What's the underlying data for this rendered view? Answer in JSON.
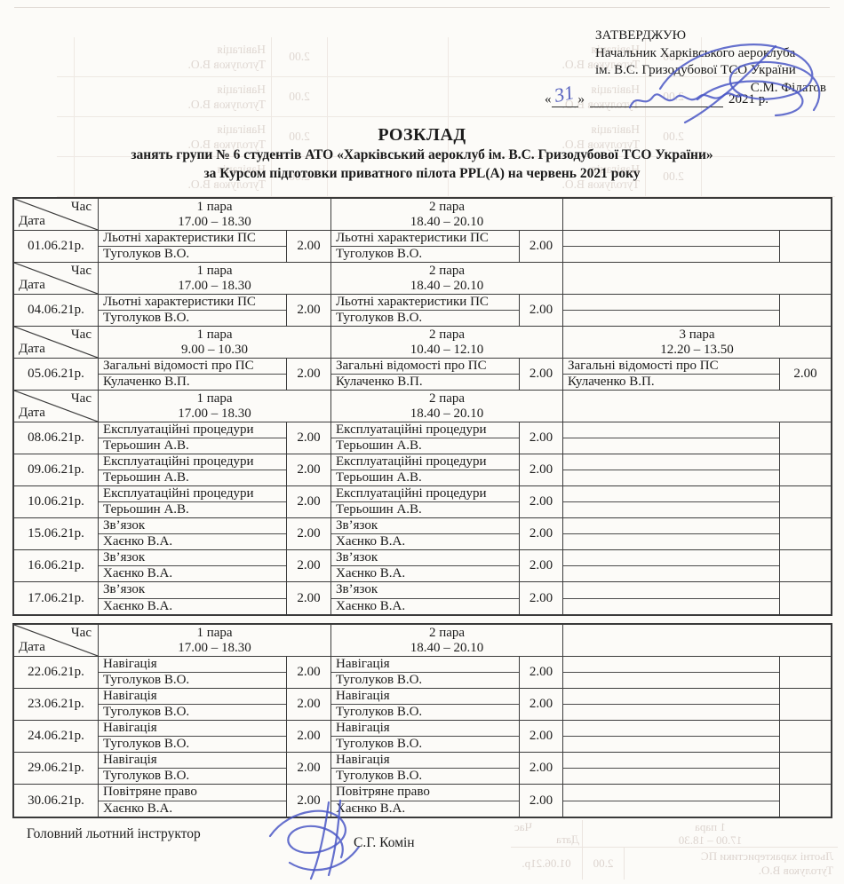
{
  "approval": {
    "stamp": "ЗАТВЕРДЖУЮ",
    "org_line1": "Начальник Харківського аероклуба",
    "org_line2": "ім. В.С. Гризодубової ТСО України",
    "signer": "С.М. Філатов",
    "quote_open": "«",
    "quote_close": "»",
    "year_suffix": "2021 р.",
    "handwritten_day": "31"
  },
  "title": {
    "heading": "РОЗКЛАД",
    "line2": "занять групи № 6 студентів АТО «Харківський аероклуб ім. В.С. Гризодубової ТСО України»",
    "line3": "за Курсом підготовки приватного пілота PPL(A) на червень 2021 року"
  },
  "corner": {
    "top": "Час",
    "bottom": "Дата"
  },
  "tables": [
    {
      "blocks": [
        {
          "type": "header",
          "cols": [
            {
              "para": "1 пара",
              "time": "17.00 – 18.30"
            },
            {
              "para": "2 пара",
              "time": "18.40 – 20.10"
            },
            {
              "para": "",
              "time": ""
            }
          ]
        },
        {
          "type": "row",
          "date": "01.06.21р.",
          "sessions": [
            {
              "subject": "Льотні характеристики ПС",
              "instructor": "Туголуков В.О.",
              "hours": "2.00"
            },
            {
              "subject": "Льотні характеристики ПС",
              "instructor": "Туголуков В.О.",
              "hours": "2.00"
            },
            {
              "subject": "",
              "instructor": "",
              "hours": ""
            }
          ]
        },
        {
          "type": "header",
          "cols": [
            {
              "para": "1 пара",
              "time": "17.00 – 18.30"
            },
            {
              "para": "2 пара",
              "time": "18.40 – 20.10"
            },
            {
              "para": "",
              "time": ""
            }
          ]
        },
        {
          "type": "row",
          "date": "04.06.21р.",
          "sessions": [
            {
              "subject": "Льотні характеристики ПС",
              "instructor": "Туголуков В.О.",
              "hours": "2.00"
            },
            {
              "subject": "Льотні характеристики ПС",
              "instructor": "Туголуков В.О.",
              "hours": "2.00"
            },
            {
              "subject": "",
              "instructor": "",
              "hours": ""
            }
          ]
        },
        {
          "type": "header",
          "cols": [
            {
              "para": "1 пара",
              "time": "9.00 – 10.30"
            },
            {
              "para": "2 пара",
              "time": "10.40 – 12.10"
            },
            {
              "para": "3 пара",
              "time": "12.20 – 13.50"
            }
          ]
        },
        {
          "type": "row",
          "date": "05.06.21р.",
          "sessions": [
            {
              "subject": "Загальні відомості про ПС",
              "instructor": "Кулаченко В.П.",
              "hours": "2.00"
            },
            {
              "subject": "Загальні відомості про ПС",
              "instructor": "Кулаченко В.П.",
              "hours": "2.00"
            },
            {
              "subject": "Загальні відомості про ПС",
              "instructor": "Кулаченко В.П.",
              "hours": "2.00"
            }
          ]
        },
        {
          "type": "header",
          "cols": [
            {
              "para": "1 пара",
              "time": "17.00 – 18.30"
            },
            {
              "para": "2 пара",
              "time": "18.40 – 20.10"
            },
            {
              "para": "",
              "time": ""
            }
          ]
        },
        {
          "type": "row",
          "date": "08.06.21р.",
          "sessions": [
            {
              "subject": "Експлуатаційні процедури",
              "instructor": "Терьошин А.В.",
              "hours": "2.00"
            },
            {
              "subject": "Експлуатаційні процедури",
              "instructor": "Терьошин А.В.",
              "hours": "2.00"
            },
            {
              "subject": "",
              "instructor": "",
              "hours": ""
            }
          ]
        },
        {
          "type": "row",
          "date": "09.06.21р.",
          "sessions": [
            {
              "subject": "Експлуатаційні процедури",
              "instructor": "Терьошин А.В.",
              "hours": "2.00"
            },
            {
              "subject": "Експлуатаційні процедури",
              "instructor": "Терьошин А.В.",
              "hours": "2.00"
            },
            {
              "subject": "",
              "instructor": "",
              "hours": ""
            }
          ]
        },
        {
          "type": "row",
          "date": "10.06.21р.",
          "sessions": [
            {
              "subject": "Експлуатаційні процедури",
              "instructor": "Терьошин А.В.",
              "hours": "2.00"
            },
            {
              "subject": "Експлуатаційні процедури",
              "instructor": "Терьошин А.В.",
              "hours": "2.00"
            },
            {
              "subject": "",
              "instructor": "",
              "hours": ""
            }
          ]
        },
        {
          "type": "row",
          "date": "15.06.21р.",
          "sessions": [
            {
              "subject": "Зв’язок",
              "instructor": "Хаєнко В.А.",
              "hours": "2.00"
            },
            {
              "subject": "Зв’язок",
              "instructor": "Хаєнко В.А.",
              "hours": "2.00"
            },
            {
              "subject": "",
              "instructor": "",
              "hours": ""
            }
          ]
        },
        {
          "type": "row",
          "date": "16.06.21р.",
          "sessions": [
            {
              "subject": "Зв’язок",
              "instructor": "Хаєнко В.А.",
              "hours": "2.00"
            },
            {
              "subject": "Зв’язок",
              "instructor": "Хаєнко В.А.",
              "hours": "2.00"
            },
            {
              "subject": "",
              "instructor": "",
              "hours": ""
            }
          ]
        },
        {
          "type": "row",
          "date": "17.06.21р.",
          "sessions": [
            {
              "subject": "Зв’язок",
              "instructor": "Хаєнко В.А.",
              "hours": "2.00"
            },
            {
              "subject": "Зв’язок",
              "instructor": "Хаєнко В.А.",
              "hours": "2.00"
            },
            {
              "subject": "",
              "instructor": "",
              "hours": ""
            }
          ]
        }
      ]
    },
    {
      "blocks": [
        {
          "type": "header",
          "cols": [
            {
              "para": "1 пара",
              "time": "17.00 – 18.30"
            },
            {
              "para": "2 пара",
              "time": "18.40 – 20.10"
            },
            {
              "para": "",
              "time": ""
            }
          ]
        },
        {
          "type": "row",
          "date": "22.06.21р.",
          "sessions": [
            {
              "subject": "Навігація",
              "instructor": "Туголуков В.О.",
              "hours": "2.00"
            },
            {
              "subject": "Навігація",
              "instructor": "Туголуков В.О.",
              "hours": "2.00"
            },
            {
              "subject": "",
              "instructor": "",
              "hours": ""
            }
          ]
        },
        {
          "type": "row",
          "date": "23.06.21р.",
          "sessions": [
            {
              "subject": "Навігація",
              "instructor": "Туголуков В.О.",
              "hours": "2.00"
            },
            {
              "subject": "Навігація",
              "instructor": "Туголуков В.О.",
              "hours": "2.00"
            },
            {
              "subject": "",
              "instructor": "",
              "hours": ""
            }
          ]
        },
        {
          "type": "row",
          "date": "24.06.21р.",
          "sessions": [
            {
              "subject": "Навігація",
              "instructor": "Туголуков В.О.",
              "hours": "2.00"
            },
            {
              "subject": "Навігація",
              "instructor": "Туголуков В.О.",
              "hours": "2.00"
            },
            {
              "subject": "",
              "instructor": "",
              "hours": ""
            }
          ]
        },
        {
          "type": "row",
          "date": "29.06.21р.",
          "sessions": [
            {
              "subject": "Навігація",
              "instructor": "Туголуков В.О.",
              "hours": "2.00"
            },
            {
              "subject": "Навігація",
              "instructor": "Туголуков В.О.",
              "hours": "2.00"
            },
            {
              "subject": "",
              "instructor": "",
              "hours": ""
            }
          ]
        },
        {
          "type": "row",
          "date": "30.06.21р.",
          "sessions": [
            {
              "subject": "Повітряне право",
              "instructor": "Хаєнко В.А.",
              "hours": "2.00"
            },
            {
              "subject": "Повітряне право",
              "instructor": "Хаєнко В.А.",
              "hours": "2.00"
            },
            {
              "subject": "",
              "instructor": "",
              "hours": ""
            }
          ]
        }
      ]
    }
  ],
  "footer": {
    "label": "Головний льотний інструктор",
    "name": "С.Г. Комін"
  },
  "bleed_through": {
    "top": {
      "subject": "Навігація",
      "instructor": "Туголуков В.О.",
      "hours": "2.00"
    },
    "bottom": {
      "corner_top": "Час",
      "corner_bottom": "Дата",
      "para": "1 пара",
      "time": "17.00 – 18.30",
      "date": "01.06.21р.",
      "subject": "Льотні характеристики ПС",
      "instructor": "Туголуков В.О.",
      "hours": "2.00"
    }
  },
  "colors": {
    "pen_blue": "#4a57c6",
    "ink": "#1b1b1b",
    "grid": "#3c3c3c",
    "paper": "#fcfbf8"
  }
}
